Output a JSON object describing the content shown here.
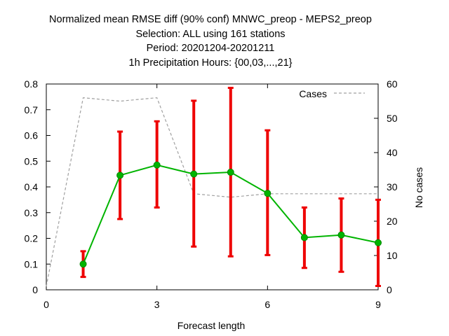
{
  "title_lines": [
    "Normalized mean RMSE diff (90% conf) MNWC_preop - MEPS2_preop",
    "Selection: ALL using   161 stations",
    "Period: 20201204-20201211",
    "1h Precipitation   Hours: {00,03,...,21}"
  ],
  "chart_data": {
    "type": "line",
    "xlabel": "Forecast length",
    "ylabel": "",
    "y2label": "No cases",
    "xlim": [
      0,
      9
    ],
    "ylim": [
      0,
      0.8
    ],
    "y2lim": [
      0,
      60
    ],
    "xticks": [
      0,
      3,
      6,
      9
    ],
    "yticks": [
      0,
      0.1,
      0.2,
      0.3,
      0.4,
      0.5,
      0.6,
      0.7,
      0.8
    ],
    "y2ticks": [
      0,
      10,
      20,
      30,
      40,
      50,
      60
    ],
    "grid": false,
    "legend_position": "top-right",
    "series": [
      {
        "name": "",
        "axis": "left",
        "color": "#00b400",
        "marker_color": "#00b400",
        "errorbar_color": "#ee0000",
        "x": [
          1,
          2,
          3,
          4,
          5,
          6,
          7,
          8,
          9
        ],
        "y": [
          0.1,
          0.445,
          0.485,
          0.45,
          0.457,
          0.375,
          0.203,
          0.213,
          0.183
        ],
        "lower": [
          0.05,
          0.275,
          0.32,
          0.168,
          0.13,
          0.135,
          0.085,
          0.07,
          0.015
        ],
        "upper": [
          0.15,
          0.615,
          0.655,
          0.735,
          0.785,
          0.62,
          0.32,
          0.355,
          0.35
        ]
      },
      {
        "name": "Cases",
        "axis": "right",
        "color": "#a0a0a0",
        "style": "dashed",
        "x": [
          0,
          1,
          2,
          3,
          4,
          5,
          6,
          7,
          8,
          9
        ],
        "y": [
          1,
          56,
          55,
          56,
          28,
          27,
          28,
          28,
          28,
          28
        ]
      }
    ]
  }
}
